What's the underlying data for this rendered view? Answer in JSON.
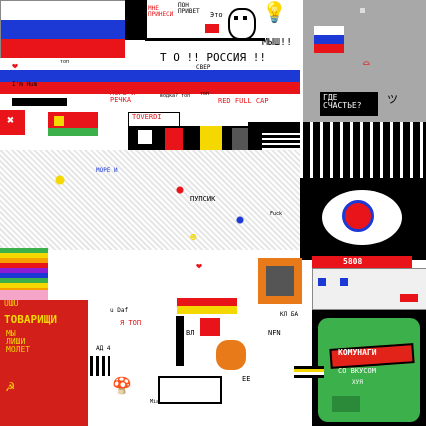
{
  "texts": {
    "mne_prinesi": "МНЕ\nПРИНЕСИ",
    "pon_prinet": "ПОН\nПРИВЕТ",
    "eto": "Это",
    "myshh": "МЫШ!!",
    "to_rossiya": "Т О !! РОССИЯ !!",
    "cbep": "CBEP",
    "i_m_hum": "I'm Hum",
    "top1": "топ",
    "top2": "топ",
    "more_i_rechka": "МОРЕ И\nРЕЧКА",
    "vodka_top": "водка? топ",
    "red_full_cap": "RED FULL CAP",
    "toverdi": "TOVERDI",
    "gde_schastye": "ГДЕ\nСЧАСТЬЕ?",
    "more_i": "МОРЕ И",
    "pupsik": "ПУПСИК",
    "fuck": "Fuck",
    "score_5808": "5808",
    "ya_top": "Я ТОП",
    "tovarishi": "ТОВАРИЩИ",
    "my_lishi": "МЫ\nЛИШИ\nМОЛЕТ",
    "u_daf": "u Daf",
    "ad4": "АД 4",
    "sword_text": "ВЛ",
    "komunagi": "КОМУНАГИ",
    "so_vkusom": "СО ВКУСОМ",
    "hui": "ХУЯ",
    "nfn": "NFN",
    "kl_ba": "КЛ БА",
    "ee": "EE",
    "mia": "Mia",
    "ushu": "UШU"
  },
  "colors": {
    "russia_white": "#ffffff",
    "russia_blue": "#1c39d6",
    "russia_red": "#e8141a",
    "black": "#000000",
    "gray_panel": "#a8a8a8",
    "chips_green": "#3cb04a",
    "chips_red": "#e2231a",
    "soviet_red": "#d21f1a",
    "yellow": "#f5d800"
  }
}
